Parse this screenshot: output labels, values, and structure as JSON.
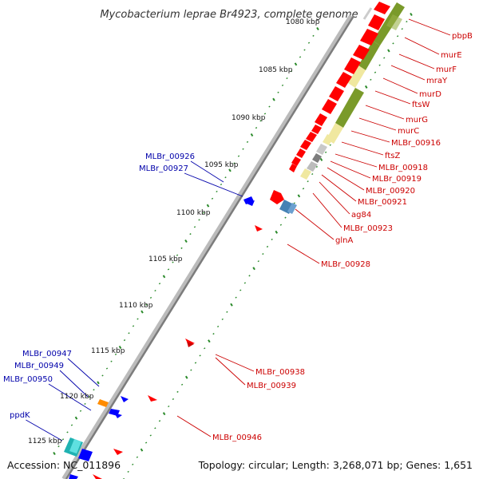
{
  "title": "Mycobacterium leprae Br4923, complete genome",
  "footer": {
    "accession": "Accession: NC_011896",
    "summary": "Topology: circular; Length: 3,268,071 bp; Genes: 1,651"
  },
  "ticks": [
    "1080 kbp",
    "1085 kbp",
    "1090 kbp",
    "1095 kbp",
    "1100 kbp",
    "1105 kbp",
    "1110 kbp",
    "1115 kbp",
    "1120 kbp",
    "1125 kbp"
  ],
  "genes_forward": [
    "pbpB",
    "murE",
    "murF",
    "mraY",
    "murD",
    "ftsW",
    "murG",
    "murC",
    "MLBr_00916",
    "ftsZ",
    "MLBr_00918",
    "MLBr_00919",
    "MLBr_00920",
    "MLBr_00921",
    "ag84",
    "MLBr_00923",
    "glnA",
    "MLBr_00928",
    "MLBr_00938",
    "MLBr_00939",
    "MLBr_00946"
  ],
  "genes_reverse": [
    "MLBr_00926",
    "MLBr_00927",
    "MLBr_00947",
    "MLBr_00949",
    "MLBr_00950",
    "ppdK"
  ],
  "colors": {
    "forward_label": "#cc0000",
    "reverse_label": "#0000aa",
    "forward_gene": "#ff0000",
    "reverse_gene": "#0000ff",
    "rna": "#7a9a2a",
    "rna_light": "#f0e8a0",
    "backbone": "#888888",
    "tick_dots": "#2a8a2a"
  }
}
